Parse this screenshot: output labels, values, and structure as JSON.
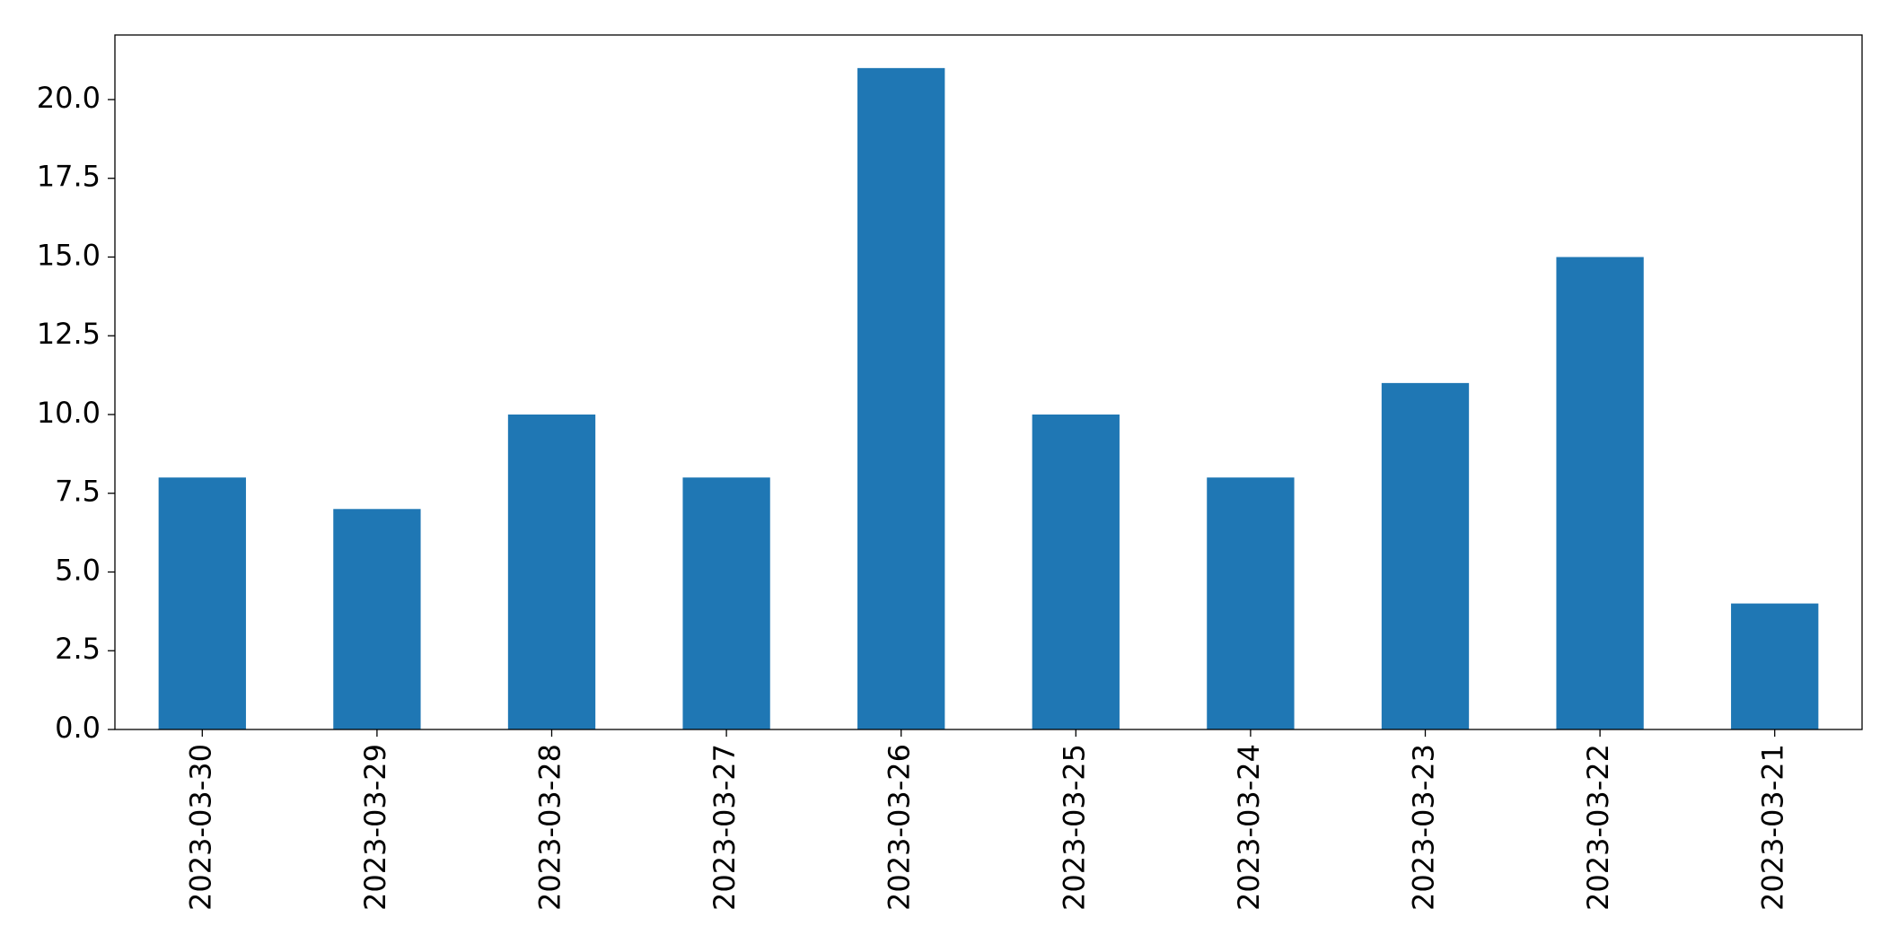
{
  "chart_data": {
    "type": "bar",
    "categories": [
      "2023-03-30",
      "2023-03-29",
      "2023-03-28",
      "2023-03-27",
      "2023-03-26",
      "2023-03-25",
      "2023-03-24",
      "2023-03-23",
      "2023-03-22",
      "2023-03-21"
    ],
    "values": [
      8,
      7,
      10,
      8,
      21,
      10,
      8,
      11,
      15,
      4
    ],
    "color": "#1f77b4",
    "ylim": [
      0,
      22.05
    ],
    "yticks": [
      {
        "value": 0,
        "label": "0.0"
      },
      2.5,
      {
        "value": 5,
        "label": "5.0"
      },
      7.5,
      {
        "value": 10,
        "label": "10.0"
      },
      12.5,
      {
        "value": 15,
        "label": "15.0"
      },
      17.5,
      {
        "value": 20,
        "label": "20.0"
      }
    ],
    "grid": false
  }
}
